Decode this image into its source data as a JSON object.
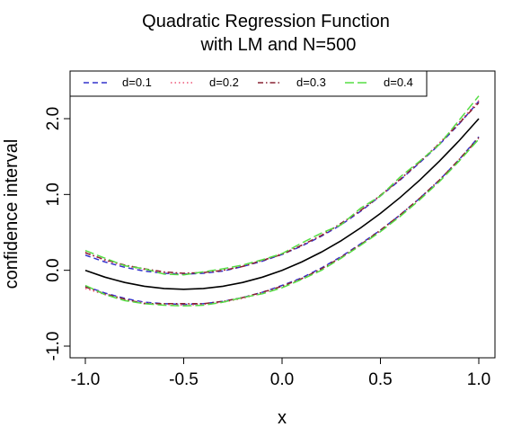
{
  "chart_data": {
    "type": "line",
    "title": [
      "Quadratic Regression Function",
      "with LM and N=500"
    ],
    "xlabel": "x",
    "ylabel": "confidence interval",
    "xlim": [
      -1.0,
      1.0
    ],
    "ylim": [
      -1.0,
      2.5
    ],
    "xticks": [
      -1.0,
      -0.5,
      0.0,
      0.5,
      1.0
    ],
    "xtick_labels": [
      "-1.0",
      "-0.5",
      "0.0",
      "0.5",
      "1.0"
    ],
    "yticks": [
      -1.0,
      0.0,
      1.0,
      2.0
    ],
    "ytick_labels": [
      "-1.0",
      "0.0",
      "1.0",
      "2.0"
    ],
    "legend_placement": "top",
    "true_function": {
      "x": [
        -1.0,
        -0.9,
        -0.8,
        -0.7,
        -0.6,
        -0.5,
        -0.4,
        -0.3,
        -0.2,
        -0.1,
        0.0,
        0.1,
        0.2,
        0.3,
        0.4,
        0.5,
        0.6,
        0.7,
        0.8,
        0.9,
        1.0
      ],
      "y": [
        0.0,
        -0.09,
        -0.16,
        -0.21,
        -0.24,
        -0.25,
        -0.24,
        -0.21,
        -0.16,
        -0.09,
        0.0,
        0.11,
        0.24,
        0.39,
        0.56,
        0.75,
        0.96,
        1.19,
        1.44,
        1.71,
        2.0
      ],
      "color": "#000000"
    },
    "x": [
      -1.0,
      -0.9,
      -0.8,
      -0.7,
      -0.6,
      -0.5,
      -0.4,
      -0.3,
      -0.2,
      -0.1,
      0.0,
      0.1,
      0.2,
      0.3,
      0.4,
      0.5,
      0.6,
      0.7,
      0.8,
      0.9,
      1.0
    ],
    "series": [
      {
        "name": "d=0.1",
        "color": "#3333cc",
        "dash": "dashed",
        "upper": [
          0.2,
          0.11,
          0.04,
          -0.01,
          -0.04,
          -0.05,
          -0.04,
          -0.01,
          0.05,
          0.12,
          0.21,
          0.32,
          0.45,
          0.6,
          0.78,
          0.98,
          1.19,
          1.42,
          1.66,
          1.93,
          2.23
        ],
        "lower": [
          -0.21,
          -0.3,
          -0.37,
          -0.42,
          -0.44,
          -0.45,
          -0.44,
          -0.41,
          -0.36,
          -0.29,
          -0.2,
          -0.1,
          0.03,
          0.18,
          0.35,
          0.53,
          0.73,
          0.95,
          1.19,
          1.46,
          1.76
        ]
      },
      {
        "name": "d=0.2",
        "color": "#ee5577",
        "dash": "dotted",
        "upper": [
          0.24,
          0.13,
          0.06,
          0.01,
          -0.03,
          -0.04,
          -0.03,
          0.0,
          0.06,
          0.13,
          0.22,
          0.33,
          0.46,
          0.61,
          0.79,
          0.98,
          1.2,
          1.43,
          1.68,
          1.95,
          2.24
        ],
        "lower": [
          -0.24,
          -0.32,
          -0.39,
          -0.43,
          -0.45,
          -0.46,
          -0.45,
          -0.42,
          -0.37,
          -0.3,
          -0.21,
          -0.11,
          0.02,
          0.17,
          0.34,
          0.52,
          0.73,
          0.95,
          1.19,
          1.46,
          1.73
        ]
      },
      {
        "name": "d=0.3",
        "color": "#882233",
        "dash": "dashdot",
        "upper": [
          0.23,
          0.14,
          0.07,
          0.02,
          -0.02,
          -0.04,
          -0.03,
          0.0,
          0.05,
          0.13,
          0.21,
          0.33,
          0.46,
          0.62,
          0.79,
          0.99,
          1.2,
          1.43,
          1.67,
          1.94,
          2.21
        ],
        "lower": [
          -0.22,
          -0.31,
          -0.38,
          -0.44,
          -0.44,
          -0.44,
          -0.44,
          -0.41,
          -0.36,
          -0.29,
          -0.21,
          -0.11,
          0.02,
          0.17,
          0.34,
          0.53,
          0.73,
          0.95,
          1.19,
          1.46,
          1.75
        ]
      },
      {
        "name": "d=0.4",
        "color": "#55dd44",
        "dash": "longdash",
        "upper": [
          0.26,
          0.16,
          0.06,
          0.02,
          -0.05,
          -0.06,
          -0.02,
          0.02,
          0.07,
          0.14,
          0.22,
          0.36,
          0.49,
          0.6,
          0.82,
          0.98,
          1.23,
          1.44,
          1.66,
          1.98,
          2.3
        ],
        "lower": [
          -0.2,
          -0.32,
          -0.4,
          -0.44,
          -0.46,
          -0.47,
          -0.46,
          -0.42,
          -0.36,
          -0.31,
          -0.23,
          -0.12,
          0.0,
          0.16,
          0.33,
          0.51,
          0.71,
          0.93,
          1.17,
          1.44,
          1.73
        ]
      }
    ]
  }
}
